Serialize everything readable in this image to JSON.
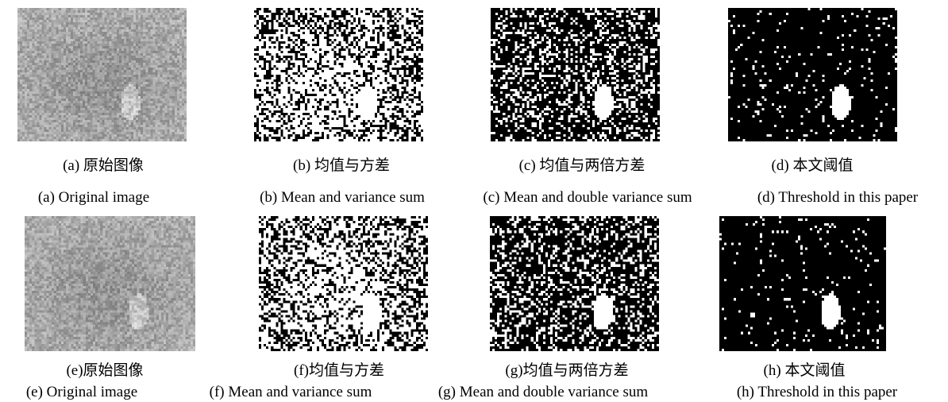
{
  "figure": {
    "rows": [
      {
        "panels": [
          {
            "id": "a",
            "kind": "gray",
            "zh": "(a)  原始图像",
            "en": "(a) Original image"
          },
          {
            "id": "b",
            "kind": "binary_dense",
            "zh": "(b)  均值与方差",
            "en": "(b) Mean and variance sum"
          },
          {
            "id": "c",
            "kind": "binary_medium",
            "zh": "(c)  均值与两倍方差",
            "en": "(c) Mean and double variance sum"
          },
          {
            "id": "d",
            "kind": "binary_sparse",
            "zh": "(d)  本文阈值",
            "en": "(d) Threshold in this paper"
          }
        ]
      },
      {
        "panels": [
          {
            "id": "e",
            "kind": "gray",
            "zh": "(e)原始图像",
            "en": "(e) Original image"
          },
          {
            "id": "f",
            "kind": "binary_dense",
            "zh": "(f)均值与方差",
            "en": "(f) Mean and variance sum"
          },
          {
            "id": "g",
            "kind": "binary_medium",
            "zh": "(g)均值与两倍方差",
            "en": "(g) Mean and double variance sum"
          },
          {
            "id": "h",
            "kind": "binary_sparse",
            "zh": "(h)  本文阈值",
            "en": "(h) Threshold in this paper"
          }
        ]
      }
    ]
  }
}
